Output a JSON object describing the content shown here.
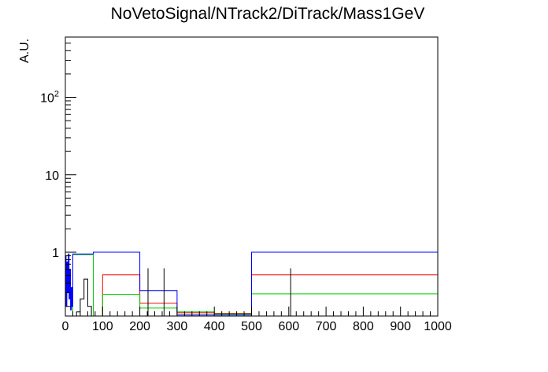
{
  "chart_data": {
    "type": "line",
    "title": "NoVetoSignal/NTrack2/DiTrack/Mass1GeV",
    "xlabel": "",
    "ylabel": "A.U.",
    "xlim": [
      0,
      1000
    ],
    "ylim": [
      0.15,
      600
    ],
    "yscale": "log",
    "grid": false,
    "x_tick_labels": [
      "0",
      "100",
      "200",
      "300",
      "400",
      "500",
      "600",
      "700",
      "800",
      "900",
      "1000"
    ],
    "y_tick_labels": [
      {
        "value": 1,
        "base": "1",
        "exp": ""
      },
      {
        "value": 10,
        "base": "10",
        "exp": ""
      },
      {
        "value": 100,
        "base": "10",
        "exp": "2"
      }
    ],
    "series": [
      {
        "color": "#ff0000",
        "bins": [
          [
            100,
            200,
            0.51
          ],
          [
            200,
            300,
            0.22
          ],
          [
            300,
            400,
            0.165
          ],
          [
            400,
            500,
            0.163
          ],
          [
            500,
            1000,
            0.51
          ]
        ]
      },
      {
        "color": "#00cc00",
        "bins": [
          [
            20,
            75,
            0.93
          ],
          [
            100,
            200,
            0.285
          ],
          [
            200,
            300,
            0.19
          ],
          [
            300,
            400,
            0.17
          ],
          [
            400,
            500,
            0.16
          ],
          [
            500,
            1000,
            0.29
          ]
        ]
      },
      {
        "color": "#0000ff",
        "bins": [
          [
            0,
            2,
            0.9
          ],
          [
            2,
            4,
            0.2
          ],
          [
            4,
            6,
            0.75
          ],
          [
            6,
            8,
            0.3
          ],
          [
            8,
            10,
            0.95
          ],
          [
            10,
            12,
            0.25
          ],
          [
            12,
            14,
            0.6
          ],
          [
            14,
            16,
            0.18
          ],
          [
            16,
            18,
            0.35
          ],
          [
            18,
            20,
            0.2
          ],
          [
            20,
            75,
            0.95
          ],
          [
            75,
            100,
            1.0
          ],
          [
            100,
            200,
            1.0
          ],
          [
            200,
            300,
            0.32
          ],
          [
            300,
            400,
            0.155
          ],
          [
            400,
            500,
            0.155
          ],
          [
            500,
            1000,
            1.0
          ]
        ]
      },
      {
        "color": "#000000",
        "bins": [
          [
            30,
            40,
            0.17
          ],
          [
            40,
            50,
            0.25
          ],
          [
            50,
            60,
            0.45
          ],
          [
            60,
            70,
            0.2
          ]
        ],
        "spikes": [
          [
            222,
            0.62
          ],
          [
            265,
            0.62
          ],
          [
            605,
            0.62
          ]
        ]
      }
    ]
  }
}
